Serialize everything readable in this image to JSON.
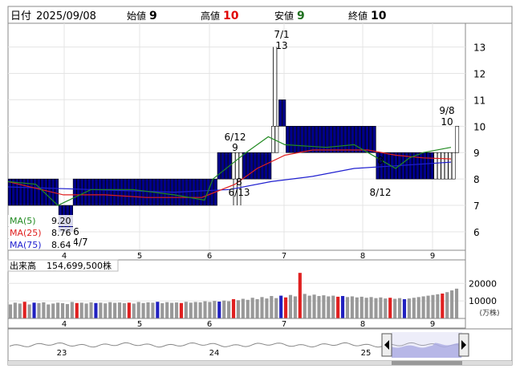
{
  "header": {
    "date_label": "日付",
    "date_value": "2025/09/08",
    "open_label": "始値",
    "open_value": "9",
    "high_label": "高値",
    "high_value": "10",
    "low_label": "安値",
    "low_value": "9",
    "close_label": "終値",
    "close_value": "10"
  },
  "colors": {
    "up": "#ffffff",
    "down": "#00008b",
    "ma5": "#228b22",
    "ma25": "#e02020",
    "ma75": "#2020d0",
    "volume_up": "#e02020",
    "volume_down": "#2020c0",
    "volume_flat": "#999999",
    "navigator_fill": "#9999dd"
  },
  "chart_data": [
    {
      "type": "candlestick",
      "y_ticks": [
        "6",
        "7",
        "8",
        "9",
        "10",
        "11",
        "12",
        "13"
      ],
      "ylim": [
        5.3,
        13.9
      ],
      "x_ticks": [
        "4",
        "5",
        "6",
        "7",
        "8",
        "9"
      ],
      "legend": [
        {
          "label": "MA(5)",
          "value": "9.20"
        },
        {
          "label": "MA(25)",
          "value": "8.76"
        },
        {
          "label": "MA(75)",
          "value": "8.64"
        }
      ],
      "annotations": [
        {
          "date": "7/1",
          "value": "13"
        },
        {
          "date": "6/12",
          "value": "9"
        },
        {
          "date": "9/8",
          "value": "10"
        },
        {
          "date": "8",
          "value": "8/12"
        },
        {
          "date": "8",
          "value": "6/13"
        },
        {
          "date": "6",
          "value": "4/7"
        }
      ],
      "segments": [
        {
          "days": 14,
          "o": 8,
          "c": 7,
          "h": 8,
          "l": 7
        },
        {
          "days": 4,
          "o": 7,
          "c": 6,
          "h": 7,
          "l": 6
        },
        {
          "days": 40,
          "o": 8,
          "c": 7,
          "h": 8,
          "l": 7
        },
        {
          "days": 4,
          "o": 9,
          "c": 8,
          "h": 9,
          "l": 8
        },
        {
          "days": 3,
          "o": 8,
          "c": 9,
          "h": 9,
          "l": 7
        },
        {
          "days": 8,
          "o": 9,
          "c": 8,
          "h": 9,
          "l": 8
        },
        {
          "days": 2,
          "o": 9,
          "c": 10,
          "h": 13,
          "l": 9
        },
        {
          "days": 2,
          "o": 11,
          "c": 10,
          "h": 11,
          "l": 10
        },
        {
          "days": 25,
          "o": 10,
          "c": 9,
          "h": 10,
          "l": 9
        },
        {
          "days": 16,
          "o": 9,
          "c": 8,
          "h": 9,
          "l": 8
        },
        {
          "days": 6,
          "o": 8,
          "c": 9,
          "h": 9,
          "l": 8
        },
        {
          "days": 1,
          "o": 9,
          "c": 10,
          "h": 10,
          "l": 9
        }
      ],
      "ma5": [
        [
          0,
          7.9
        ],
        [
          10,
          7.8
        ],
        [
          18,
          7.0
        ],
        [
          30,
          7.6
        ],
        [
          45,
          7.6
        ],
        [
          60,
          7.4
        ],
        [
          71,
          7.2
        ],
        [
          74,
          8.0
        ],
        [
          80,
          8.5
        ],
        [
          86,
          9.0
        ],
        [
          90,
          9.3
        ],
        [
          94,
          9.6
        ],
        [
          100,
          9.3
        ],
        [
          115,
          9.2
        ],
        [
          125,
          9.3
        ],
        [
          130,
          9.0
        ],
        [
          140,
          8.4
        ],
        [
          145,
          8.8
        ],
        [
          150,
          9.0
        ],
        [
          160,
          9.2
        ]
      ],
      "ma25": [
        [
          0,
          7.9
        ],
        [
          20,
          7.4
        ],
        [
          35,
          7.4
        ],
        [
          50,
          7.3
        ],
        [
          70,
          7.3
        ],
        [
          82,
          7.8
        ],
        [
          90,
          8.4
        ],
        [
          100,
          8.9
        ],
        [
          110,
          9.1
        ],
        [
          120,
          9.1
        ],
        [
          130,
          9.1
        ],
        [
          140,
          8.9
        ],
        [
          150,
          8.8
        ],
        [
          160,
          8.76
        ]
      ],
      "ma75": [
        [
          0,
          7.7
        ],
        [
          30,
          7.6
        ],
        [
          60,
          7.5
        ],
        [
          80,
          7.6
        ],
        [
          95,
          7.9
        ],
        [
          110,
          8.1
        ],
        [
          125,
          8.4
        ],
        [
          140,
          8.5
        ],
        [
          160,
          8.64
        ]
      ]
    },
    {
      "type": "bar",
      "title": "出来高",
      "total": "154,699,500株",
      "y_ticks": [
        "10000",
        "20000"
      ],
      "unit": "(万株)",
      "ylim": [
        0,
        27000
      ],
      "x_ticks": [
        "4",
        "5",
        "6",
        "7",
        "8",
        "9"
      ],
      "values": [
        8000,
        9000,
        8500,
        9500,
        8000,
        9000,
        8800,
        9200,
        8000,
        8500,
        9000,
        8700,
        8200,
        9400,
        8800,
        9000,
        8500,
        9200,
        8800,
        9000,
        8600,
        9300,
        8900,
        9100,
        8700,
        9000,
        8500,
        9400,
        8800,
        9200,
        9000,
        9500,
        8700,
        9300,
        8900,
        9100,
        8800,
        9500,
        9000,
        9400,
        9200,
        9800,
        9400,
        10000,
        9600,
        10200,
        9800,
        11000,
        10400,
        11200,
        10600,
        11800,
        11000,
        12200,
        11400,
        12800,
        11600,
        13000,
        12000,
        13400,
        12600,
        26000,
        14000,
        13000,
        13600,
        12800,
        13200,
        12600,
        13000,
        12400,
        12800,
        12200,
        12600,
        12000,
        12400,
        11800,
        12200,
        11600,
        12000,
        11400,
        11800,
        11200,
        11600,
        11000,
        11400,
        11800,
        12200,
        12600,
        13000,
        13400,
        13800,
        14200,
        15000,
        16000,
        17000
      ],
      "colors": "auto"
    },
    {
      "type": "area",
      "x_ticks": [
        "23",
        "24",
        "25"
      ]
    }
  ]
}
